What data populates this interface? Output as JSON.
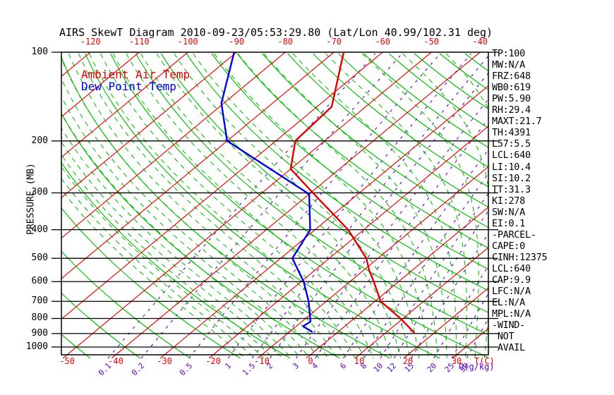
{
  "title": "AIRS SkewT Diagram 2010-09-23/05:53:29.80 (Lat/Lon 40.99/102.31 deg)",
  "legend": {
    "ambient_label": "Ambient Air Temp",
    "dew_label": "Dew Point Temp"
  },
  "axes": {
    "pressure_label": "PRESSURE (MB)",
    "pressure_ticks": [
      100,
      200,
      300,
      400,
      500,
      600,
      700,
      800,
      900,
      1000
    ],
    "top_temp_ticks": [
      -120,
      -110,
      -100,
      -90,
      -80,
      -70,
      -60,
      -50,
      -40
    ],
    "bottom_temp_ticks": [
      -50,
      -40,
      -30,
      -20,
      -10,
      0,
      10,
      20,
      30
    ],
    "temp_unit_label": "T(C)",
    "mixing_ratio_ticks": [
      "0.1",
      "0.2",
      "0.5",
      "1",
      "1.5",
      "2",
      "3",
      "4",
      "6",
      "8",
      "10",
      "12",
      "15",
      "20",
      "25",
      "30"
    ],
    "mixing_unit_label": "Q(g/kg)"
  },
  "stats": [
    "TP:100",
    "MW:N/A",
    "FRZ:648",
    "WB0:619",
    "PW:5.90",
    "RH:29.4",
    "MAXT:21.7",
    "TH:4391",
    "L57:5.5",
    "LCL:640",
    "LI:10.4",
    "SI:10.2",
    "TT:31.3",
    "KI:278",
    "SW:N/A",
    "EI:0.1",
    "-PARCEL-",
    "CAPE:0",
    "CINH:12375",
    "LCL:640",
    "CAP:9.9",
    "LFC:N/A",
    "EL:N/A",
    "MPL:N/A",
    "-WIND-",
    " NOT",
    " AVAIL"
  ],
  "colors": {
    "isotherm": "#eb0000",
    "adiabat": "#00be00",
    "mixing": "#5c00c8",
    "pressure_line": "#000000",
    "ambient_curve": "#e10000",
    "dew_curve": "#0000e8",
    "label_red": "#f00000",
    "label_purple": "#5c00c8"
  },
  "chart_data": {
    "type": "line",
    "title": "AIRS SkewT Diagram 2010-09-23/05:53:29.80",
    "xlabel": "Temperature (C)",
    "ylabel": "Pressure (MB)",
    "x_range": [
      -120,
      40
    ],
    "y_range_mb": [
      100,
      1050
    ],
    "y_scale": "log",
    "skew": true,
    "series": [
      {
        "name": "Ambient Air Temp",
        "color": "#e10000",
        "points_pressure_temp": [
          [
            100,
            -68.0
          ],
          [
            153,
            -57.0
          ],
          [
            200,
            -56.0
          ],
          [
            249,
            -50.0
          ],
          [
            303,
            -39.0
          ],
          [
            400,
            -23.2
          ],
          [
            500,
            -12.4
          ],
          [
            547,
            -9.0
          ],
          [
            600,
            -5.1
          ],
          [
            700,
            1.2
          ],
          [
            800,
            9.5
          ],
          [
            895,
            15.9
          ]
        ]
      },
      {
        "name": "Dew Point Temp",
        "color": "#0000e8",
        "points_pressure_temp": [
          [
            100,
            -90.5
          ],
          [
            115,
            -87.0
          ],
          [
            149,
            -80.5
          ],
          [
            200,
            -70.0
          ],
          [
            303,
            -40.0
          ],
          [
            400,
            -31.0
          ],
          [
            500,
            -27.6
          ],
          [
            600,
            -19.5
          ],
          [
            700,
            -13.6
          ],
          [
            820,
            -8.2
          ],
          [
            850,
            -8.6
          ],
          [
            890,
            -5.2
          ]
        ]
      }
    ]
  }
}
